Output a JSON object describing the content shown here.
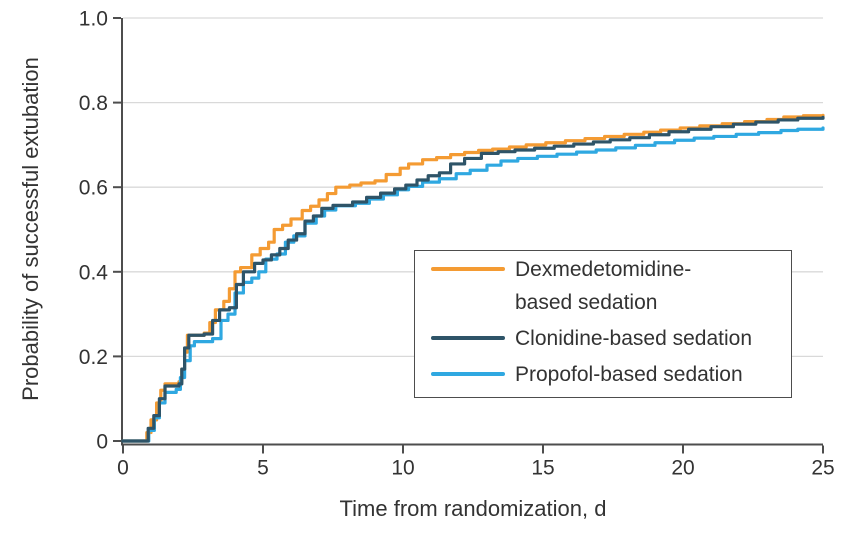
{
  "figure": {
    "background": "#ffffff"
  },
  "chart_data": {
    "type": "line",
    "subtype": "kaplan-meier-step",
    "title": "",
    "xlabel": "Time from randomization, d",
    "ylabel": "Probability of successful extubation",
    "xlim": [
      0,
      25
    ],
    "ylim": [
      0,
      1.0
    ],
    "xticks": [
      0,
      5,
      10,
      15,
      20,
      25
    ],
    "xtick_labels": [
      "0",
      "5",
      "10",
      "15",
      "20",
      "25"
    ],
    "yticks": [
      0,
      0.2,
      0.4,
      0.6,
      0.8,
      1.0
    ],
    "ytick_labels": [
      "0",
      "0.2",
      "0.4",
      "0.6",
      "0.8",
      "1.0"
    ],
    "grid": "horizontal-light",
    "legend_position": "inside-lower-right",
    "draw_order": [
      0,
      2,
      1
    ],
    "colors": {
      "grid": "#d9d9d9",
      "axis": "#4d4d4d",
      "text": "#333333",
      "legend_border": "#4d4d4d"
    },
    "series": [
      {
        "key": "dexmedetomidine",
        "name": "Dexmedetomidine-based sedation",
        "legend_lines": [
          "Dexmedetomidine-",
          "based sedation"
        ],
        "color": "#f49b33",
        "points": [
          [
            0,
            0
          ],
          [
            0.7,
            0
          ],
          [
            0.85,
            0.02
          ],
          [
            1.0,
            0.05
          ],
          [
            1.2,
            0.09
          ],
          [
            1.35,
            0.12
          ],
          [
            1.5,
            0.135
          ],
          [
            2.0,
            0.14
          ],
          [
            2.1,
            0.17
          ],
          [
            2.2,
            0.21
          ],
          [
            2.3,
            0.25
          ],
          [
            2.9,
            0.255
          ],
          [
            3.1,
            0.28
          ],
          [
            3.3,
            0.31
          ],
          [
            3.6,
            0.33
          ],
          [
            3.8,
            0.36
          ],
          [
            4.0,
            0.4
          ],
          [
            4.2,
            0.41
          ],
          [
            4.6,
            0.44
          ],
          [
            4.9,
            0.455
          ],
          [
            5.2,
            0.47
          ],
          [
            5.4,
            0.5
          ],
          [
            5.7,
            0.51
          ],
          [
            6.0,
            0.525
          ],
          [
            6.4,
            0.545
          ],
          [
            6.7,
            0.555
          ],
          [
            7.0,
            0.57
          ],
          [
            7.3,
            0.585
          ],
          [
            7.6,
            0.6
          ],
          [
            8.1,
            0.605
          ],
          [
            8.5,
            0.61
          ],
          [
            9.0,
            0.615
          ],
          [
            9.4,
            0.63
          ],
          [
            9.9,
            0.645
          ],
          [
            10.2,
            0.655
          ],
          [
            10.7,
            0.665
          ],
          [
            11.2,
            0.67
          ],
          [
            11.7,
            0.677
          ],
          [
            12.2,
            0.682
          ],
          [
            12.7,
            0.687
          ],
          [
            13.2,
            0.69
          ],
          [
            13.8,
            0.695
          ],
          [
            14.4,
            0.7
          ],
          [
            15.1,
            0.705
          ],
          [
            15.8,
            0.71
          ],
          [
            16.5,
            0.715
          ],
          [
            17.2,
            0.72
          ],
          [
            17.9,
            0.725
          ],
          [
            18.6,
            0.73
          ],
          [
            19.2,
            0.735
          ],
          [
            19.9,
            0.74
          ],
          [
            20.6,
            0.745
          ],
          [
            21.4,
            0.75
          ],
          [
            22.2,
            0.755
          ],
          [
            23.0,
            0.76
          ],
          [
            23.6,
            0.766
          ],
          [
            24.3,
            0.769
          ],
          [
            25,
            0.77
          ]
        ]
      },
      {
        "key": "clonidine",
        "name": "Clonidine-based sedation",
        "legend_lines": [
          "Clonidine-based sedation"
        ],
        "color": "#2e5468",
        "points": [
          [
            0,
            0
          ],
          [
            0.7,
            0
          ],
          [
            0.9,
            0.03
          ],
          [
            1.1,
            0.06
          ],
          [
            1.3,
            0.1
          ],
          [
            1.5,
            0.13
          ],
          [
            2.0,
            0.135
          ],
          [
            2.1,
            0.17
          ],
          [
            2.2,
            0.22
          ],
          [
            2.35,
            0.25
          ],
          [
            2.9,
            0.253
          ],
          [
            3.2,
            0.285
          ],
          [
            3.45,
            0.31
          ],
          [
            3.8,
            0.315
          ],
          [
            4.05,
            0.37
          ],
          [
            4.3,
            0.4
          ],
          [
            4.7,
            0.42
          ],
          [
            5.0,
            0.428
          ],
          [
            5.3,
            0.44
          ],
          [
            5.6,
            0.455
          ],
          [
            5.9,
            0.475
          ],
          [
            6.2,
            0.49
          ],
          [
            6.5,
            0.52
          ],
          [
            6.8,
            0.532
          ],
          [
            7.1,
            0.55
          ],
          [
            7.5,
            0.557
          ],
          [
            8.2,
            0.565
          ],
          [
            8.7,
            0.576
          ],
          [
            9.2,
            0.586
          ],
          [
            9.7,
            0.596
          ],
          [
            10.1,
            0.605
          ],
          [
            10.5,
            0.617
          ],
          [
            10.9,
            0.627
          ],
          [
            11.3,
            0.634
          ],
          [
            11.7,
            0.655
          ],
          [
            12.2,
            0.668
          ],
          [
            12.8,
            0.68
          ],
          [
            13.4,
            0.684
          ],
          [
            14.0,
            0.688
          ],
          [
            14.7,
            0.692
          ],
          [
            15.4,
            0.697
          ],
          [
            16.1,
            0.702
          ],
          [
            16.8,
            0.707
          ],
          [
            17.4,
            0.712
          ],
          [
            18.1,
            0.717
          ],
          [
            18.8,
            0.724
          ],
          [
            19.5,
            0.731
          ],
          [
            20.2,
            0.737
          ],
          [
            21.0,
            0.743
          ],
          [
            21.8,
            0.749
          ],
          [
            22.6,
            0.754
          ],
          [
            23.4,
            0.759
          ],
          [
            24.1,
            0.763
          ],
          [
            25,
            0.765
          ]
        ]
      },
      {
        "key": "propofol",
        "name": "Propofol-based sedation",
        "legend_lines": [
          "Propofol-based sedation"
        ],
        "color": "#2fa8e1",
        "points": [
          [
            0,
            0
          ],
          [
            0.72,
            0
          ],
          [
            0.92,
            0.025
          ],
          [
            1.12,
            0.055
          ],
          [
            1.3,
            0.09
          ],
          [
            1.5,
            0.115
          ],
          [
            1.9,
            0.122
          ],
          [
            2.05,
            0.15
          ],
          [
            2.2,
            0.19
          ],
          [
            2.4,
            0.225
          ],
          [
            2.55,
            0.235
          ],
          [
            3.2,
            0.242
          ],
          [
            3.5,
            0.285
          ],
          [
            3.75,
            0.3
          ],
          [
            4.0,
            0.35
          ],
          [
            4.3,
            0.375
          ],
          [
            4.6,
            0.385
          ],
          [
            4.85,
            0.4
          ],
          [
            5.1,
            0.43
          ],
          [
            5.5,
            0.442
          ],
          [
            5.8,
            0.47
          ],
          [
            6.1,
            0.485
          ],
          [
            6.5,
            0.515
          ],
          [
            6.9,
            0.532
          ],
          [
            7.2,
            0.546
          ],
          [
            7.6,
            0.556
          ],
          [
            8.3,
            0.562
          ],
          [
            8.8,
            0.572
          ],
          [
            9.3,
            0.582
          ],
          [
            9.8,
            0.594
          ],
          [
            10.2,
            0.602
          ],
          [
            10.7,
            0.612
          ],
          [
            11.3,
            0.62
          ],
          [
            11.9,
            0.632
          ],
          [
            12.4,
            0.64
          ],
          [
            13.0,
            0.652
          ],
          [
            13.5,
            0.662
          ],
          [
            14.1,
            0.668
          ],
          [
            14.8,
            0.673
          ],
          [
            15.5,
            0.678
          ],
          [
            16.2,
            0.683
          ],
          [
            16.9,
            0.688
          ],
          [
            17.6,
            0.693
          ],
          [
            18.3,
            0.699
          ],
          [
            19.0,
            0.705
          ],
          [
            19.7,
            0.711
          ],
          [
            20.4,
            0.716
          ],
          [
            21.1,
            0.72
          ],
          [
            21.9,
            0.725
          ],
          [
            22.7,
            0.729
          ],
          [
            23.5,
            0.734
          ],
          [
            24.1,
            0.737
          ],
          [
            25,
            0.74
          ]
        ]
      }
    ]
  }
}
